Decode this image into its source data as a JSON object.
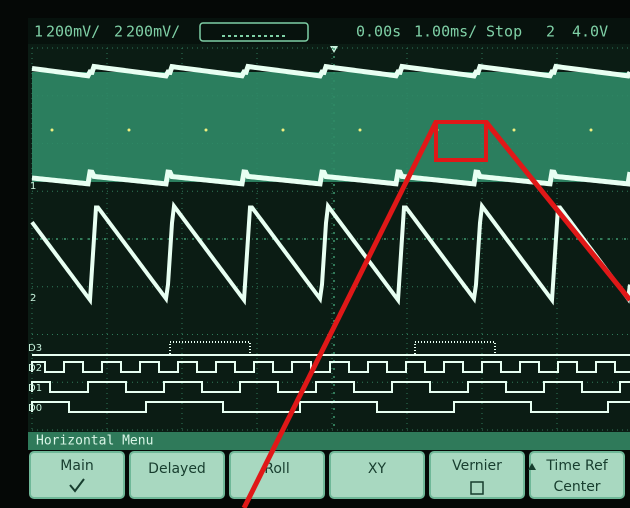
{
  "status_bar": {
    "channel1": {
      "number": "1",
      "scale": "200mV/"
    },
    "channel2": {
      "number": "2",
      "scale": "200mV/"
    },
    "delay": "0.00s",
    "timebase": "1.00ms/",
    "run_state": "Stop",
    "trigger_source": "2",
    "trigger_level": "4.0V"
  },
  "channel_markers": [
    "1",
    "2",
    "D3",
    "D2",
    "D1",
    "D0"
  ],
  "menu": {
    "title": "Horizontal Menu",
    "buttons": [
      {
        "label": "Main"
      },
      {
        "label": "Delayed"
      },
      {
        "label": "Roll"
      },
      {
        "label": "XY"
      },
      {
        "label": "Vernier"
      },
      {
        "label": "Time Ref",
        "sub": "Center"
      }
    ]
  }
}
